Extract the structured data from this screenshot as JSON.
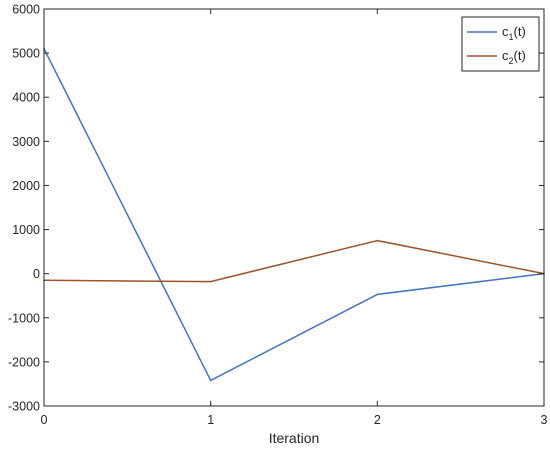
{
  "chart_data": {
    "type": "line",
    "xlabel": "Iteration",
    "ylabel": "",
    "x": [
      0,
      1,
      2,
      3
    ],
    "xlim": [
      0,
      3
    ],
    "ylim": [
      -3000,
      6000
    ],
    "xticks": [
      "0",
      "1",
      "2",
      "3"
    ],
    "yticks": [
      "-3000",
      "-2000",
      "-1000",
      "0",
      "1000",
      "2000",
      "3000",
      "4000",
      "5000",
      "6000"
    ],
    "grid": false,
    "legend_position": "top-right",
    "series": [
      {
        "name": "c1(t)",
        "name_base": "c",
        "name_sub": "1",
        "name_suffix": "(t)",
        "color": "#4472C4",
        "values": [
          5100,
          -2420,
          -470,
          0
        ]
      },
      {
        "name": "c2(t)",
        "name_base": "c",
        "name_sub": "2",
        "name_suffix": "(t)",
        "color": "#A0522D",
        "values": [
          -150,
          -180,
          750,
          0
        ]
      }
    ]
  }
}
